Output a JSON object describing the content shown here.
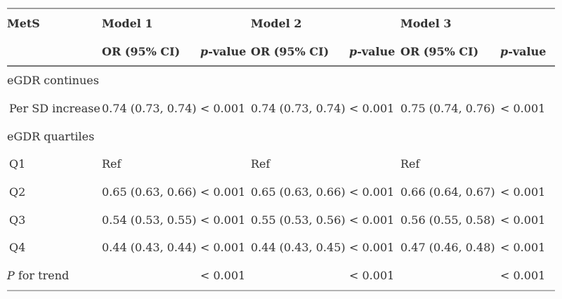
{
  "colors": {
    "background": "#fdfdfd",
    "text": "#333333",
    "outer_rule": "#9e9e9e",
    "header_rule": "#757575"
  },
  "table": {
    "stub_header": "MetS",
    "models": [
      "Model 1",
      "Model 2",
      "Model 3"
    ],
    "sub_headers": {
      "or": "OR (95% CI)",
      "p_italic": "p",
      "p_rest": "-value"
    },
    "rows": [
      {
        "label": "eGDR continues",
        "values": [
          "",
          "",
          "",
          "",
          "",
          ""
        ]
      },
      {
        "label": "Per SD increase",
        "values": [
          "0.74 (0.73, 0.74)",
          "< 0.001",
          "0.74 (0.73, 0.74)",
          "< 0.001",
          "0.75 (0.74, 0.76)",
          "< 0.001"
        ]
      },
      {
        "label": "eGDR quartiles",
        "values": [
          "",
          "",
          "",
          "",
          "",
          ""
        ]
      },
      {
        "label": "Q1",
        "values": [
          "Ref",
          "",
          "Ref",
          "",
          "Ref",
          ""
        ]
      },
      {
        "label": "Q2",
        "values": [
          "0.65 (0.63, 0.66)",
          "< 0.001",
          "0.65 (0.63, 0.66)",
          "< 0.001",
          "0.66 (0.64, 0.67)",
          "< 0.001"
        ]
      },
      {
        "label": "Q3",
        "values": [
          "0.54 (0.53, 0.55)",
          "< 0.001",
          "0.55 (0.53, 0.56)",
          "< 0.001",
          "0.56 (0.55, 0.58)",
          "< 0.001"
        ]
      },
      {
        "label": "Q4",
        "values": [
          "0.44 (0.43, 0.44)",
          "< 0.001",
          "0.44 (0.43, 0.45)",
          "< 0.001",
          "0.47 (0.46, 0.48)",
          "< 0.001"
        ]
      },
      {
        "label_italic": "P",
        "label_rest": " for trend",
        "values": [
          "",
          "< 0.001",
          "",
          "< 0.001",
          "",
          "< 0.001"
        ]
      }
    ]
  }
}
